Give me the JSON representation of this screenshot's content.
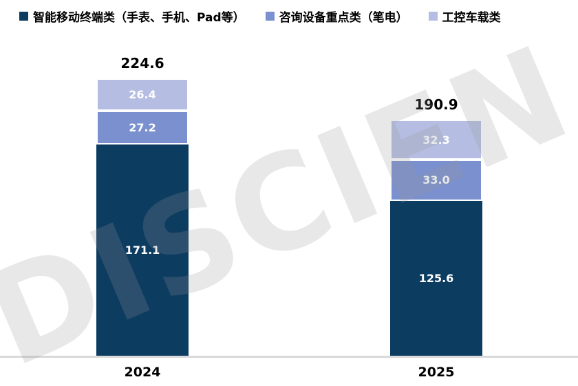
{
  "chart_data": {
    "type": "bar",
    "stacked": true,
    "title": "",
    "xlabel": "",
    "ylabel": "",
    "categories": [
      "2024",
      "2025"
    ],
    "series": [
      {
        "name": "智能移动终端类（手表、手机、Pad等）",
        "color": "#0D3C61",
        "values": [
          171.1,
          125.6
        ],
        "labels": [
          "171.1",
          "125.6"
        ]
      },
      {
        "name": "咨询设备重点类（笔电）",
        "color": "#7A90CF",
        "values": [
          27.2,
          33.0
        ],
        "labels": [
          "27.2",
          "33.0"
        ]
      },
      {
        "name": "工控车载类",
        "color": "#B5BEE2",
        "values": [
          26.4,
          32.3
        ],
        "labels": [
          "26.4",
          "32.3"
        ]
      }
    ],
    "totals": [
      224.6,
      190.9
    ],
    "total_labels": [
      "224.6",
      "190.9"
    ],
    "ylim": [
      0,
      250
    ],
    "grid": false,
    "legend_position": "top",
    "value_label_color": "#FFFFFF",
    "total_label_color": "#000000"
  },
  "axis": {
    "baseline_color": "#D9D9D9"
  },
  "watermark": {
    "text": "DISCIEN",
    "color": "#969696",
    "opacity": 0.22
  }
}
